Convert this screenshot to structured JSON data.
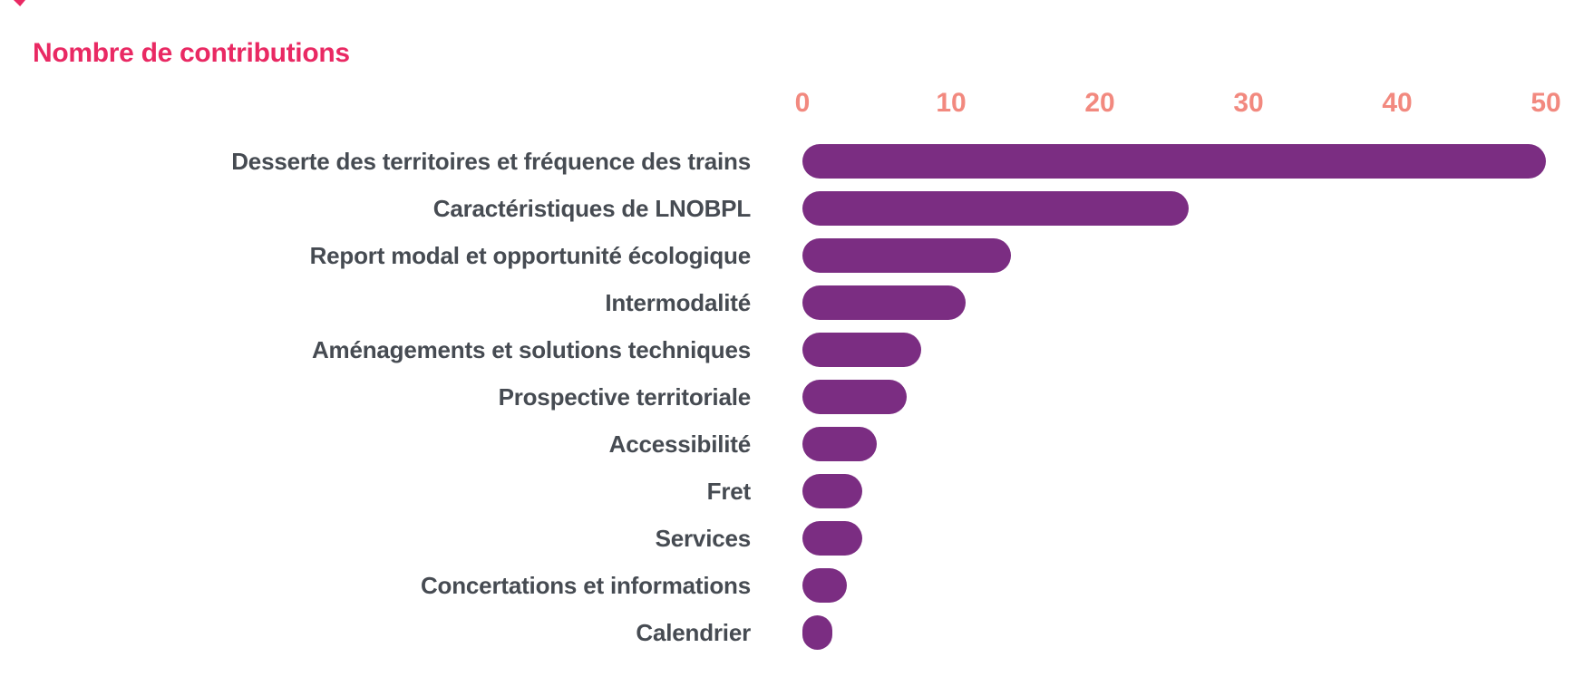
{
  "page": {
    "background": "#ffffff"
  },
  "chart_data": {
    "type": "bar",
    "orientation": "horizontal",
    "title": "Nombre de contributions",
    "xlabel": "",
    "ylabel": "",
    "categories": [
      "Desserte des territoires et fréquence des trains",
      "Caractéristiques de LNOBPL",
      "Report modal et opportunité écologique",
      "Intermodalité",
      "Aménagements et solutions techniques",
      "Prospective territoriale",
      "Accessibilité",
      "Fret",
      "Services",
      "Concertations et informations",
      "Calendrier"
    ],
    "values": [
      50,
      26,
      14,
      11,
      8,
      7,
      5,
      4,
      4,
      3,
      2
    ],
    "x_axis": {
      "position": "top",
      "ticks": [
        0,
        10,
        20,
        30,
        40,
        50
      ],
      "range": [
        0,
        50
      ]
    },
    "grid": false,
    "legend": "none",
    "colors": {
      "title": "#E92963",
      "tick_label": "#F2897F",
      "bar": "#7B2D82",
      "category_label": "#464B52"
    }
  }
}
